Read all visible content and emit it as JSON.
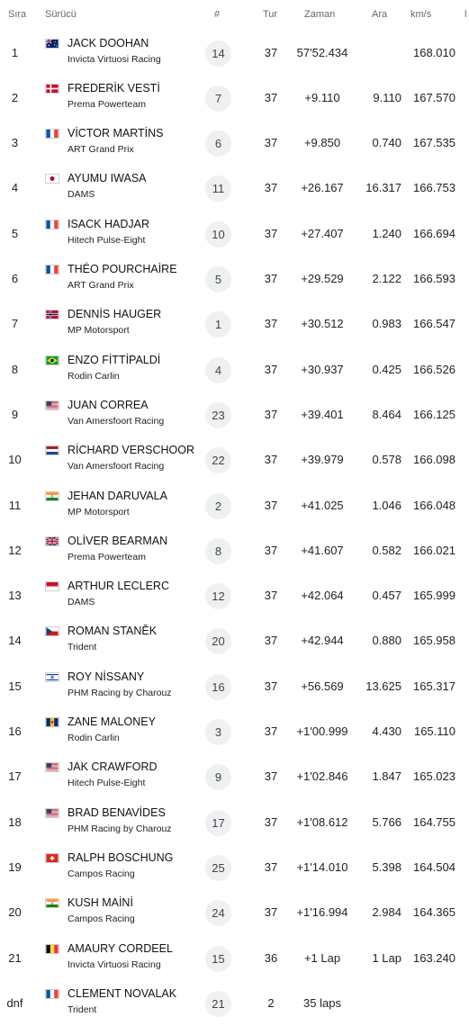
{
  "header": {
    "pos": "Sıra",
    "driver": "Sürücü",
    "num": "#",
    "laps": "Tur",
    "time": "Zaman",
    "gap": "Ara",
    "speed": "km/s",
    "extra": "l"
  },
  "rows": [
    {
      "pos": "1",
      "flag": "AUS",
      "driver": "JACK DOOHAN",
      "team": "Invicta Virtuosi Racing",
      "num": "14",
      "laps": "37",
      "time": "57'52.434",
      "gap": "",
      "speed": "168.010"
    },
    {
      "pos": "2",
      "flag": "DEN",
      "driver": "FREDERİK VESTİ",
      "team": "Prema Powerteam",
      "num": "7",
      "laps": "37",
      "time": "+9.110",
      "gap": "9.110",
      "speed": "167.570"
    },
    {
      "pos": "3",
      "flag": "FRA",
      "driver": "VİCTOR MARTİNS",
      "team": "ART Grand Prix",
      "num": "6",
      "laps": "37",
      "time": "+9.850",
      "gap": "0.740",
      "speed": "167.535"
    },
    {
      "pos": "4",
      "flag": "JPN",
      "driver": "AYUMU IWASA",
      "team": "DAMS",
      "num": "11",
      "laps": "37",
      "time": "+26.167",
      "gap": "16.317",
      "speed": "166.753"
    },
    {
      "pos": "5",
      "flag": "FRA",
      "driver": "ISACK HADJAR",
      "team": "Hitech Pulse-Eight",
      "num": "10",
      "laps": "37",
      "time": "+27.407",
      "gap": "1.240",
      "speed": "166.694"
    },
    {
      "pos": "6",
      "flag": "FRA",
      "driver": "THÉO POURCHAİRE",
      "team": "ART Grand Prix",
      "num": "5",
      "laps": "37",
      "time": "+29.529",
      "gap": "2.122",
      "speed": "166.593"
    },
    {
      "pos": "7",
      "flag": "NOR",
      "driver": "DENNİS HAUGER",
      "team": "MP Motorsport",
      "num": "1",
      "laps": "37",
      "time": "+30.512",
      "gap": "0.983",
      "speed": "166.547"
    },
    {
      "pos": "8",
      "flag": "BRA",
      "driver": "ENZO FİTTİPALDİ",
      "team": "Rodin Carlin",
      "num": "4",
      "laps": "37",
      "time": "+30.937",
      "gap": "0.425",
      "speed": "166.526"
    },
    {
      "pos": "9",
      "flag": "USA",
      "driver": "JUAN CORREA",
      "team": "Van Amersfoort Racing",
      "num": "23",
      "laps": "37",
      "time": "+39.401",
      "gap": "8.464",
      "speed": "166.125"
    },
    {
      "pos": "10",
      "flag": "NED",
      "driver": "RİCHARD VERSCHOOR",
      "team": "Van Amersfoort Racing",
      "num": "22",
      "laps": "37",
      "time": "+39.979",
      "gap": "0.578",
      "speed": "166.098"
    },
    {
      "pos": "11",
      "flag": "IND",
      "driver": "JEHAN DARUVALA",
      "team": "MP Motorsport",
      "num": "2",
      "laps": "37",
      "time": "+41.025",
      "gap": "1.046",
      "speed": "166.048"
    },
    {
      "pos": "12",
      "flag": "GBR",
      "driver": "OLİVER BEARMAN",
      "team": "Prema Powerteam",
      "num": "8",
      "laps": "37",
      "time": "+41.607",
      "gap": "0.582",
      "speed": "166.021"
    },
    {
      "pos": "13",
      "flag": "MON",
      "driver": "ARTHUR LECLERC",
      "team": "DAMS",
      "num": "12",
      "laps": "37",
      "time": "+42.064",
      "gap": "0.457",
      "speed": "165.999"
    },
    {
      "pos": "14",
      "flag": "CZE",
      "driver": "ROMAN STANĚK",
      "team": "Trident",
      "num": "20",
      "laps": "37",
      "time": "+42.944",
      "gap": "0.880",
      "speed": "165.958"
    },
    {
      "pos": "15",
      "flag": "ISR",
      "driver": "ROY NİSSANY",
      "team": "PHM Racing by Charouz",
      "num": "16",
      "laps": "37",
      "time": "+56.569",
      "gap": "13.625",
      "speed": "165.317"
    },
    {
      "pos": "16",
      "flag": "BAR",
      "driver": "ZANE MALONEY",
      "team": "Rodin Carlin",
      "num": "3",
      "laps": "37",
      "time": "+1'00.999",
      "gap": "4.430",
      "speed": "165.110"
    },
    {
      "pos": "17",
      "flag": "USA",
      "driver": "JAK CRAWFORD",
      "team": "Hitech Pulse-Eight",
      "num": "9",
      "laps": "37",
      "time": "+1'02.846",
      "gap": "1.847",
      "speed": "165.023"
    },
    {
      "pos": "18",
      "flag": "USA",
      "driver": "BRAD BENAVİDES",
      "team": "PHM Racing by Charouz",
      "num": "17",
      "laps": "37",
      "time": "+1'08.612",
      "gap": "5.766",
      "speed": "164.755"
    },
    {
      "pos": "19",
      "flag": "SUI",
      "driver": "RALPH BOSCHUNG",
      "team": "Campos Racing",
      "num": "25",
      "laps": "37",
      "time": "+1'14.010",
      "gap": "5.398",
      "speed": "164.504"
    },
    {
      "pos": "20",
      "flag": "IND",
      "driver": "KUSH MAİNİ",
      "team": "Campos Racing",
      "num": "24",
      "laps": "37",
      "time": "+1'16.994",
      "gap": "2.984",
      "speed": "164.365"
    },
    {
      "pos": "21",
      "flag": "BEL",
      "driver": "AMAURY CORDEEL",
      "team": "Invicta Virtuosi Racing",
      "num": "15",
      "laps": "36",
      "time": "+1 Lap",
      "gap": "1 Lap",
      "speed": "163.240"
    },
    {
      "pos": "dnf",
      "flag": "FRA",
      "driver": "CLEMENT NOVALAK",
      "team": "Trident",
      "num": "21",
      "laps": "2",
      "time": "35 laps",
      "gap": "",
      "speed": ""
    }
  ]
}
